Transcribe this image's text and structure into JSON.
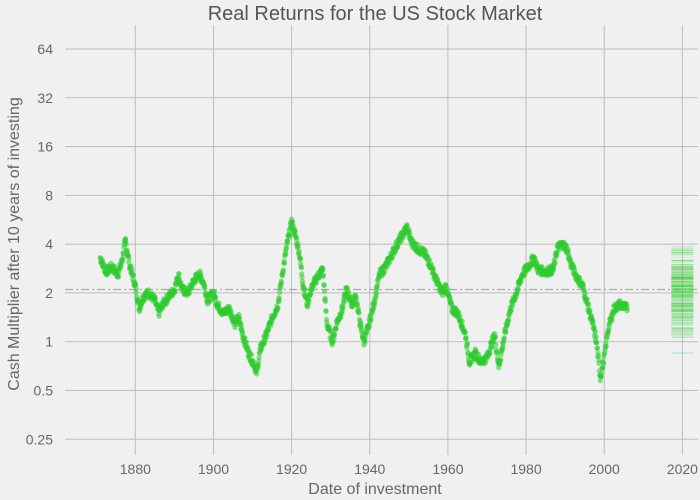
{
  "chart_data": {
    "type": "scatter",
    "title": "Real Returns for the US Stock Market",
    "xlabel": "Date of investment",
    "ylabel": "Cash Multiplier after 10 years of investing",
    "x_ticks": [
      "1880",
      "1900",
      "1920",
      "1940",
      "1960",
      "1980",
      "2000",
      "2020"
    ],
    "y_ticks": [
      "0.25",
      "0.5",
      "1",
      "2",
      "4",
      "8",
      "16",
      "32",
      "64"
    ],
    "y_scale": "log2",
    "xlim": [
      1862,
      2024
    ],
    "ylim": [
      0.2,
      90
    ],
    "grid": true,
    "reference_line": {
      "y": 2.1,
      "style": "dash-dot"
    },
    "colors": {
      "points": "#2ecc2e",
      "reference": "#aaaaaa",
      "grid": "#bdbdbd"
    },
    "series": [
      {
        "keypoints": [
          [
            1871.0,
            3.3
          ],
          [
            1872.5,
            2.7
          ],
          [
            1874.0,
            2.9
          ],
          [
            1875.5,
            2.6
          ],
          [
            1876.5,
            3.1
          ],
          [
            1877.5,
            4.2
          ],
          [
            1878.5,
            3.0
          ],
          [
            1880.0,
            2.2
          ],
          [
            1881.0,
            1.6
          ],
          [
            1882.0,
            1.9
          ],
          [
            1883.5,
            2.0
          ],
          [
            1885.0,
            1.8
          ],
          [
            1886.0,
            1.5
          ],
          [
            1887.0,
            1.7
          ],
          [
            1888.5,
            1.9
          ],
          [
            1890.0,
            2.1
          ],
          [
            1891.0,
            2.6
          ],
          [
            1892.0,
            2.1
          ],
          [
            1893.5,
            2.0
          ],
          [
            1895.0,
            2.4
          ],
          [
            1896.5,
            2.6
          ],
          [
            1897.5,
            2.3
          ],
          [
            1898.5,
            1.8
          ],
          [
            1900.0,
            2.0
          ],
          [
            1901.0,
            1.7
          ],
          [
            1902.5,
            1.5
          ],
          [
            1904.0,
            1.6
          ],
          [
            1905.5,
            1.3
          ],
          [
            1906.5,
            1.4
          ],
          [
            1907.5,
            1.1
          ],
          [
            1909.0,
            0.85
          ],
          [
            1910.5,
            0.72
          ],
          [
            1911.0,
            0.63
          ],
          [
            1912.0,
            0.9
          ],
          [
            1913.5,
            1.1
          ],
          [
            1915.0,
            1.4
          ],
          [
            1916.5,
            1.7
          ],
          [
            1918.0,
            3.0
          ],
          [
            1919.0,
            4.2
          ],
          [
            1920.0,
            5.5
          ],
          [
            1921.0,
            4.5
          ],
          [
            1922.0,
            3.5
          ],
          [
            1923.0,
            2.2
          ],
          [
            1924.0,
            1.7
          ],
          [
            1925.0,
            2.1
          ],
          [
            1926.5,
            2.5
          ],
          [
            1928.0,
            2.8
          ],
          [
            1929.0,
            1.3
          ],
          [
            1930.5,
            1.0
          ],
          [
            1931.5,
            1.3
          ],
          [
            1933.0,
            1.6
          ],
          [
            1934.0,
            2.1
          ],
          [
            1935.5,
            1.7
          ],
          [
            1936.5,
            1.9
          ],
          [
            1937.5,
            1.3
          ],
          [
            1938.5,
            1.0
          ],
          [
            1939.5,
            1.2
          ],
          [
            1941.0,
            1.7
          ],
          [
            1942.5,
            2.6
          ],
          [
            1944.0,
            2.9
          ],
          [
            1945.5,
            3.4
          ],
          [
            1947.0,
            4.0
          ],
          [
            1948.5,
            4.6
          ],
          [
            1949.5,
            5.1
          ],
          [
            1950.5,
            4.2
          ],
          [
            1952.0,
            3.8
          ],
          [
            1954.0,
            3.5
          ],
          [
            1955.5,
            3.0
          ],
          [
            1957.0,
            2.4
          ],
          [
            1958.5,
            2.0
          ],
          [
            1959.5,
            2.2
          ],
          [
            1961.0,
            1.6
          ],
          [
            1962.5,
            1.5
          ],
          [
            1963.5,
            1.3
          ],
          [
            1964.5,
            1.1
          ],
          [
            1965.5,
            0.75
          ],
          [
            1967.0,
            0.85
          ],
          [
            1968.5,
            0.75
          ],
          [
            1970.0,
            0.8
          ],
          [
            1971.0,
            0.95
          ],
          [
            1972.0,
            1.1
          ],
          [
            1973.0,
            0.7
          ],
          [
            1974.5,
            1.1
          ],
          [
            1976.0,
            1.6
          ],
          [
            1977.5,
            2.0
          ],
          [
            1979.0,
            2.6
          ],
          [
            1980.5,
            2.9
          ],
          [
            1982.0,
            3.3
          ],
          [
            1983.0,
            2.8
          ],
          [
            1985.0,
            2.7
          ],
          [
            1987.0,
            2.8
          ],
          [
            1988.0,
            3.8
          ],
          [
            1989.5,
            4.0
          ],
          [
            1990.5,
            3.7
          ],
          [
            1991.5,
            3.0
          ],
          [
            1993.0,
            2.5
          ],
          [
            1994.5,
            2.2
          ],
          [
            1996.0,
            1.6
          ],
          [
            1997.0,
            1.3
          ],
          [
            1998.0,
            1.0
          ],
          [
            1999.0,
            0.6
          ],
          [
            2000.0,
            0.8
          ],
          [
            2001.0,
            1.2
          ],
          [
            2002.5,
            1.6
          ],
          [
            2004.0,
            1.7
          ],
          [
            2006.0,
            1.6
          ]
        ]
      },
      {
        "type": "strip",
        "x": 2020,
        "low": 0.75,
        "high": 5.5
      }
    ]
  }
}
